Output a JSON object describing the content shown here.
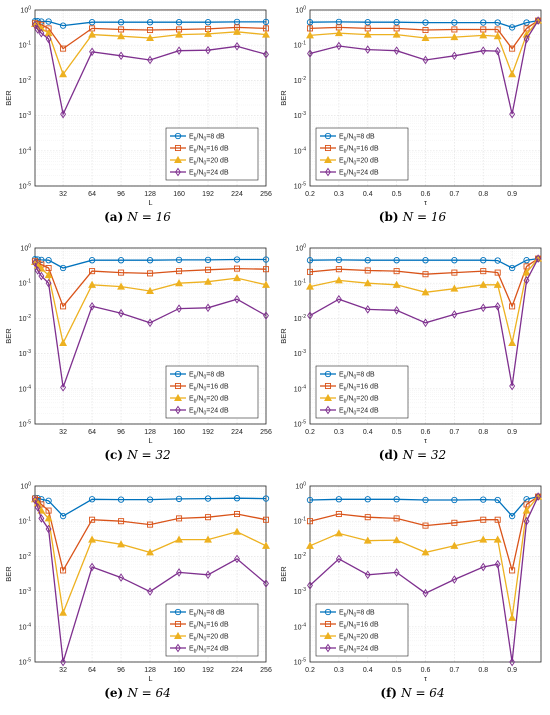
{
  "colors": {
    "s8": "#0072BD",
    "s16": "#D95319",
    "s20": "#EDB120",
    "s24": "#7E2F8E",
    "grid": "#e3e3e3"
  },
  "legend_labels": [
    "Eb/N0=8 dB",
    "Eb/N0=16 dB",
    "Eb/N0=20 dB",
    "Eb/N0=24 dB"
  ],
  "chart_data": [
    {
      "id": "a",
      "caption": {
        "letter": "(a)",
        "text": "N = 16"
      },
      "type": "line",
      "xlabel": "L",
      "ylabel": "BER",
      "xscale": "linear",
      "yscale": "log",
      "xlim": [
        1,
        256
      ],
      "ylim": [
        1e-05,
        1
      ],
      "xticks": [
        32,
        64,
        96,
        128,
        160,
        192,
        224,
        256
      ],
      "yticks": [
        "10^-5",
        "10^-4",
        "10^-3",
        "10^-2",
        "10^-1",
        "10^0"
      ],
      "legend_position": "bottom-right",
      "x": [
        1,
        4,
        8,
        16,
        32,
        64,
        96,
        128,
        160,
        192,
        224,
        256
      ],
      "series": [
        {
          "name": "Eb/N0=8 dB",
          "marker": "circle",
          "values": [
            0.48,
            0.48,
            0.47,
            0.47,
            0.36,
            0.45,
            0.45,
            0.45,
            0.45,
            0.45,
            0.46,
            0.46
          ]
        },
        {
          "name": "Eb/N0=16 dB",
          "marker": "square",
          "values": [
            0.42,
            0.4,
            0.38,
            0.3,
            0.08,
            0.3,
            0.28,
            0.27,
            0.28,
            0.29,
            0.32,
            0.3
          ]
        },
        {
          "name": "Eb/N0=20 dB",
          "marker": "triangle",
          "values": [
            0.4,
            0.35,
            0.3,
            0.22,
            0.015,
            0.2,
            0.18,
            0.16,
            0.2,
            0.21,
            0.24,
            0.2
          ]
        },
        {
          "name": "Eb/N0=24 dB",
          "marker": "diamond",
          "values": [
            0.38,
            0.28,
            0.22,
            0.15,
            0.0011,
            0.065,
            0.05,
            0.038,
            0.07,
            0.072,
            0.093,
            0.055
          ]
        }
      ]
    },
    {
      "id": "b",
      "caption": {
        "letter": "(b)",
        "text": "N = 16"
      },
      "type": "line",
      "xlabel": "τ",
      "ylabel": "BER",
      "xscale": "linear",
      "yscale": "log",
      "xlim": [
        0.2,
        1.0
      ],
      "ylim": [
        1e-05,
        1
      ],
      "xticks": [
        0.2,
        0.3,
        0.4,
        0.5,
        0.6,
        0.7,
        0.8,
        0.9
      ],
      "yticks": [
        "10^-5",
        "10^-4",
        "10^-3",
        "10^-2",
        "10^-1",
        "10^0"
      ],
      "legend_position": "bottom-left",
      "x": [
        0.2,
        0.3,
        0.4,
        0.5,
        0.6,
        0.7,
        0.8,
        0.85,
        0.9,
        0.95,
        0.99
      ],
      "series": [
        {
          "name": "Eb/N0=8 dB",
          "marker": "circle",
          "values": [
            0.45,
            0.46,
            0.45,
            0.45,
            0.44,
            0.44,
            0.44,
            0.44,
            0.32,
            0.44,
            0.5
          ]
        },
        {
          "name": "Eb/N0=16 dB",
          "marker": "square",
          "values": [
            0.3,
            0.32,
            0.3,
            0.3,
            0.27,
            0.28,
            0.28,
            0.28,
            0.08,
            0.3,
            0.5
          ]
        },
        {
          "name": "Eb/N0=20 dB",
          "marker": "triangle",
          "values": [
            0.19,
            0.22,
            0.2,
            0.2,
            0.16,
            0.17,
            0.19,
            0.18,
            0.015,
            0.2,
            0.5
          ]
        },
        {
          "name": "Eb/N0=24 dB",
          "marker": "diamond",
          "values": [
            0.058,
            0.095,
            0.075,
            0.07,
            0.038,
            0.05,
            0.07,
            0.068,
            0.0011,
            0.15,
            0.5
          ]
        }
      ]
    },
    {
      "id": "c",
      "caption": {
        "letter": "(c)",
        "text": "N = 32"
      },
      "type": "line",
      "xlabel": "L",
      "ylabel": "BER",
      "xscale": "linear",
      "yscale": "log",
      "xlim": [
        1,
        256
      ],
      "ylim": [
        1e-05,
        1
      ],
      "xticks": [
        32,
        64,
        96,
        128,
        160,
        192,
        224,
        256
      ],
      "yticks": [
        "10^-5",
        "10^-4",
        "10^-3",
        "10^-2",
        "10^-1",
        "10^0"
      ],
      "legend_position": "bottom-right",
      "x": [
        1,
        4,
        8,
        16,
        32,
        64,
        96,
        128,
        160,
        192,
        224,
        256
      ],
      "series": [
        {
          "name": "Eb/N0=8 dB",
          "marker": "circle",
          "values": [
            0.48,
            0.47,
            0.46,
            0.45,
            0.27,
            0.45,
            0.45,
            0.45,
            0.46,
            0.46,
            0.47,
            0.47
          ]
        },
        {
          "name": "Eb/N0=16 dB",
          "marker": "square",
          "values": [
            0.42,
            0.38,
            0.34,
            0.27,
            0.022,
            0.22,
            0.2,
            0.19,
            0.22,
            0.24,
            0.26,
            0.25
          ]
        },
        {
          "name": "Eb/N0=20 dB",
          "marker": "triangle",
          "values": [
            0.4,
            0.32,
            0.26,
            0.17,
            0.002,
            0.09,
            0.08,
            0.06,
            0.1,
            0.11,
            0.14,
            0.09
          ]
        },
        {
          "name": "Eb/N0=24 dB",
          "marker": "diamond",
          "values": [
            0.38,
            0.23,
            0.16,
            0.1,
            0.00011,
            0.022,
            0.014,
            0.0075,
            0.019,
            0.02,
            0.035,
            0.012
          ]
        }
      ]
    },
    {
      "id": "d",
      "caption": {
        "letter": "(d)",
        "text": "N = 32"
      },
      "type": "line",
      "xlabel": "τ",
      "ylabel": "BER",
      "xscale": "linear",
      "yscale": "log",
      "xlim": [
        0.2,
        1.0
      ],
      "ylim": [
        1e-05,
        1
      ],
      "xticks": [
        0.2,
        0.3,
        0.4,
        0.5,
        0.6,
        0.7,
        0.8,
        0.9
      ],
      "yticks": [
        "10^-5",
        "10^-4",
        "10^-3",
        "10^-2",
        "10^-1",
        "10^0"
      ],
      "legend_position": "bottom-left",
      "x": [
        0.2,
        0.3,
        0.4,
        0.5,
        0.6,
        0.7,
        0.8,
        0.85,
        0.9,
        0.95,
        0.99
      ],
      "series": [
        {
          "name": "Eb/N0=8 dB",
          "marker": "circle",
          "values": [
            0.45,
            0.46,
            0.45,
            0.45,
            0.45,
            0.45,
            0.45,
            0.44,
            0.27,
            0.45,
            0.5
          ]
        },
        {
          "name": "Eb/N0=16 dB",
          "marker": "square",
          "values": [
            0.21,
            0.25,
            0.23,
            0.22,
            0.18,
            0.2,
            0.22,
            0.2,
            0.022,
            0.3,
            0.5
          ]
        },
        {
          "name": "Eb/N0=20 dB",
          "marker": "triangle",
          "values": [
            0.08,
            0.12,
            0.1,
            0.09,
            0.055,
            0.07,
            0.09,
            0.09,
            0.002,
            0.2,
            0.5
          ]
        },
        {
          "name": "Eb/N0=24 dB",
          "marker": "diamond",
          "values": [
            0.012,
            0.035,
            0.018,
            0.017,
            0.0075,
            0.013,
            0.02,
            0.022,
            0.00012,
            0.12,
            0.5
          ]
        }
      ]
    },
    {
      "id": "e",
      "caption": {
        "letter": "(e)",
        "text": "N = 64"
      },
      "type": "line",
      "xlabel": "L",
      "ylabel": "BER",
      "xscale": "linear",
      "yscale": "log",
      "xlim": [
        1,
        256
      ],
      "ylim": [
        1e-05,
        1
      ],
      "xticks": [
        32,
        64,
        96,
        128,
        160,
        192,
        224,
        256
      ],
      "yticks": [
        "10^-5",
        "10^-4",
        "10^-3",
        "10^-2",
        "10^-1",
        "10^0"
      ],
      "legend_position": "bottom-right",
      "x": [
        1,
        4,
        8,
        16,
        32,
        64,
        96,
        128,
        160,
        192,
        224,
        256
      ],
      "series": [
        {
          "name": "Eb/N0=8 dB",
          "marker": "circle",
          "values": [
            0.46,
            0.45,
            0.42,
            0.38,
            0.14,
            0.42,
            0.41,
            0.41,
            0.43,
            0.44,
            0.45,
            0.44
          ]
        },
        {
          "name": "Eb/N0=16 dB",
          "marker": "square",
          "values": [
            0.44,
            0.4,
            0.3,
            0.2,
            0.004,
            0.11,
            0.1,
            0.08,
            0.12,
            0.13,
            0.16,
            0.11
          ]
        },
        {
          "name": "Eb/N0=20 dB",
          "marker": "triangle",
          "values": [
            0.42,
            0.32,
            0.2,
            0.12,
            0.00025,
            0.03,
            0.022,
            0.013,
            0.03,
            0.03,
            0.05,
            0.02
          ]
        },
        {
          "name": "Eb/N0=24 dB",
          "marker": "diamond",
          "values": [
            0.4,
            0.25,
            0.12,
            0.06,
            1e-05,
            0.005,
            0.0025,
            0.001,
            0.0035,
            0.003,
            0.0085,
            0.0017
          ]
        }
      ]
    },
    {
      "id": "f",
      "caption": {
        "letter": "(f)",
        "text": "N = 64"
      },
      "type": "line",
      "xlabel": "τ",
      "ylabel": "BER",
      "xscale": "linear",
      "yscale": "log",
      "xlim": [
        0.2,
        1.0
      ],
      "ylim": [
        1e-05,
        1
      ],
      "xticks": [
        0.2,
        0.3,
        0.4,
        0.5,
        0.6,
        0.7,
        0.8,
        0.9
      ],
      "yticks": [
        "10^-5",
        "10^-4",
        "10^-3",
        "10^-2",
        "10^-1",
        "10^0"
      ],
      "legend_position": "bottom-left",
      "x": [
        0.2,
        0.3,
        0.4,
        0.5,
        0.6,
        0.7,
        0.8,
        0.85,
        0.9,
        0.95,
        0.99
      ],
      "series": [
        {
          "name": "Eb/N0=8 dB",
          "marker": "circle",
          "values": [
            0.4,
            0.42,
            0.42,
            0.42,
            0.4,
            0.4,
            0.41,
            0.4,
            0.14,
            0.42,
            0.5
          ]
        },
        {
          "name": "Eb/N0=16 dB",
          "marker": "square",
          "values": [
            0.1,
            0.16,
            0.13,
            0.12,
            0.075,
            0.09,
            0.11,
            0.11,
            0.004,
            0.3,
            0.5
          ]
        },
        {
          "name": "Eb/N0=20 dB",
          "marker": "triangle",
          "values": [
            0.02,
            0.045,
            0.028,
            0.029,
            0.013,
            0.02,
            0.03,
            0.03,
            0.00018,
            0.2,
            0.5
          ]
        },
        {
          "name": "Eb/N0=24 dB",
          "marker": "diamond",
          "values": [
            0.0015,
            0.0085,
            0.003,
            0.0035,
            0.0009,
            0.0022,
            0.005,
            0.006,
            1e-05,
            0.1,
            0.5
          ]
        }
      ]
    }
  ]
}
